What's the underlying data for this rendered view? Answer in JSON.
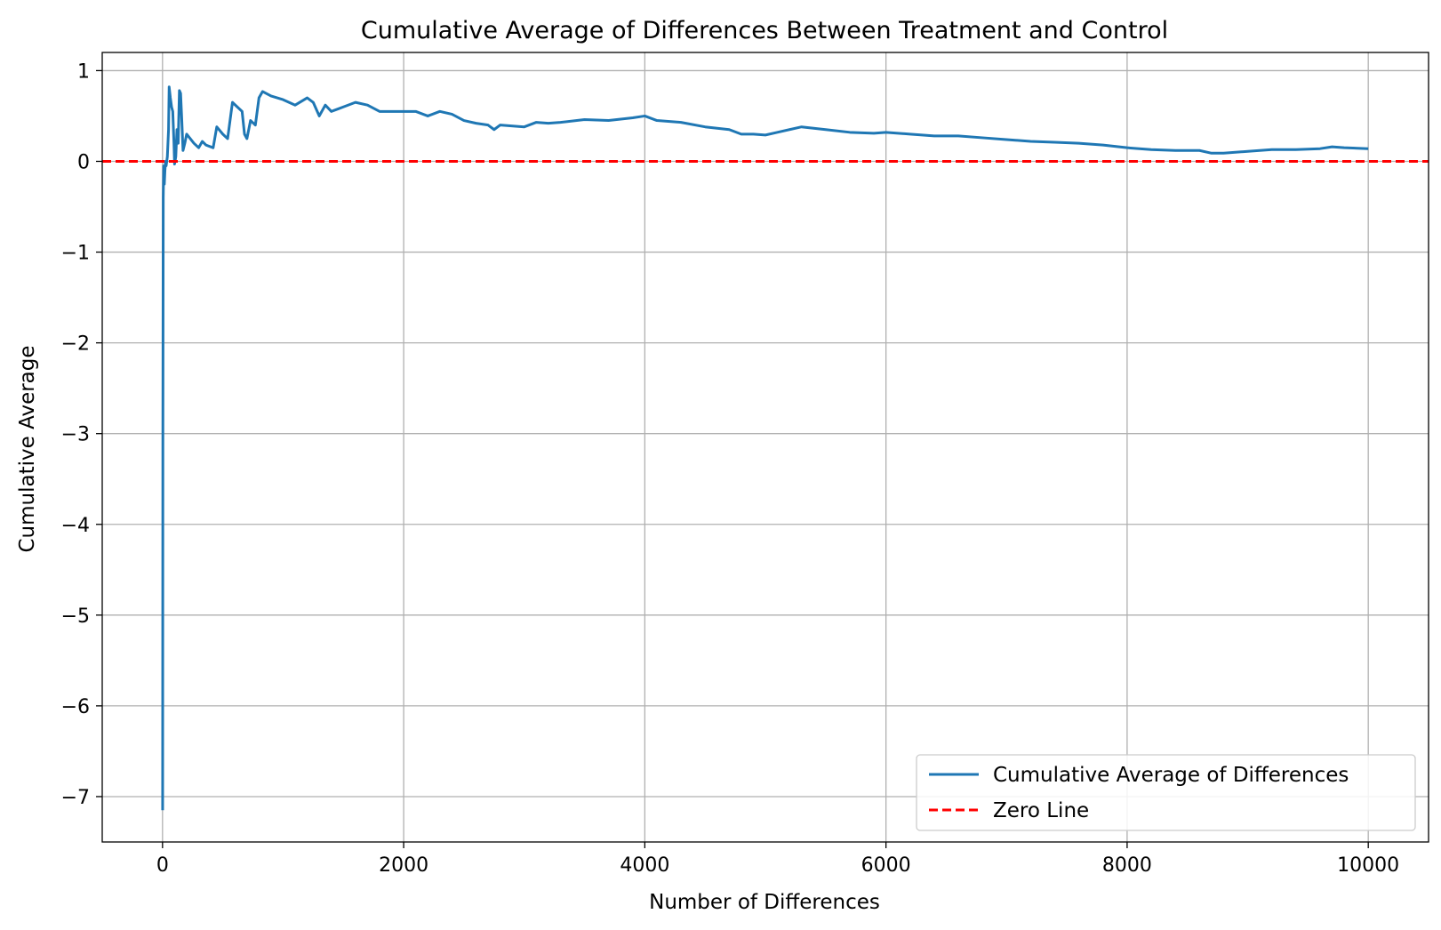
{
  "chart_data": {
    "type": "line",
    "title": "Cumulative Average of Differences Between Treatment and Control",
    "xlabel": "Number of Differences",
    "ylabel": "Cumulative Average",
    "xlim": [
      -500,
      10500
    ],
    "ylim": [
      -7.5,
      1.2
    ],
    "xticks": [
      0,
      2000,
      4000,
      6000,
      8000,
      10000
    ],
    "xtick_labels": [
      "0",
      "2000",
      "4000",
      "6000",
      "8000",
      "10000"
    ],
    "yticks": [
      1,
      0,
      -1,
      -2,
      -3,
      -4,
      -5,
      -6,
      -7
    ],
    "ytick_labels": [
      "1",
      "0",
      "−1",
      "−2",
      "−3",
      "−4",
      "−5",
      "−6",
      "−7"
    ],
    "grid": true,
    "legend_position": "bottom-right",
    "series": [
      {
        "name": "Cumulative Average of Differences",
        "color": "#1f77b4",
        "style": "solid",
        "points": [
          [
            1,
            -7.15
          ],
          [
            3,
            -3.0
          ],
          [
            6,
            -0.4
          ],
          [
            10,
            -0.05
          ],
          [
            15,
            -0.25
          ],
          [
            20,
            -0.1
          ],
          [
            25,
            0.0
          ],
          [
            30,
            -0.05
          ],
          [
            40,
            0.05
          ],
          [
            50,
            0.35
          ],
          [
            55,
            0.82
          ],
          [
            65,
            0.7
          ],
          [
            75,
            0.6
          ],
          [
            85,
            0.55
          ],
          [
            95,
            0.2
          ],
          [
            100,
            -0.03
          ],
          [
            110,
            0.05
          ],
          [
            120,
            0.35
          ],
          [
            130,
            0.2
          ],
          [
            140,
            0.78
          ],
          [
            150,
            0.75
          ],
          [
            160,
            0.45
          ],
          [
            170,
            0.12
          ],
          [
            185,
            0.2
          ],
          [
            200,
            0.3
          ],
          [
            230,
            0.25
          ],
          [
            260,
            0.2
          ],
          [
            300,
            0.15
          ],
          [
            330,
            0.22
          ],
          [
            360,
            0.18
          ],
          [
            420,
            0.15
          ],
          [
            450,
            0.38
          ],
          [
            500,
            0.3
          ],
          [
            540,
            0.25
          ],
          [
            580,
            0.65
          ],
          [
            620,
            0.6
          ],
          [
            660,
            0.55
          ],
          [
            680,
            0.3
          ],
          [
            700,
            0.25
          ],
          [
            730,
            0.45
          ],
          [
            770,
            0.4
          ],
          [
            800,
            0.7
          ],
          [
            830,
            0.77
          ],
          [
            900,
            0.72
          ],
          [
            1000,
            0.68
          ],
          [
            1100,
            0.62
          ],
          [
            1200,
            0.7
          ],
          [
            1250,
            0.65
          ],
          [
            1300,
            0.5
          ],
          [
            1350,
            0.62
          ],
          [
            1400,
            0.55
          ],
          [
            1500,
            0.6
          ],
          [
            1600,
            0.65
          ],
          [
            1700,
            0.62
          ],
          [
            1800,
            0.55
          ],
          [
            1900,
            0.55
          ],
          [
            2000,
            0.55
          ],
          [
            2100,
            0.55
          ],
          [
            2200,
            0.5
          ],
          [
            2300,
            0.55
          ],
          [
            2400,
            0.52
          ],
          [
            2500,
            0.45
          ],
          [
            2600,
            0.42
          ],
          [
            2700,
            0.4
          ],
          [
            2750,
            0.35
          ],
          [
            2800,
            0.4
          ],
          [
            3000,
            0.38
          ],
          [
            3100,
            0.43
          ],
          [
            3200,
            0.42
          ],
          [
            3300,
            0.43
          ],
          [
            3500,
            0.46
          ],
          [
            3700,
            0.45
          ],
          [
            3900,
            0.48
          ],
          [
            4000,
            0.5
          ],
          [
            4100,
            0.45
          ],
          [
            4300,
            0.43
          ],
          [
            4500,
            0.38
          ],
          [
            4700,
            0.35
          ],
          [
            4800,
            0.3
          ],
          [
            4900,
            0.3
          ],
          [
            5000,
            0.29
          ],
          [
            5100,
            0.32
          ],
          [
            5300,
            0.38
          ],
          [
            5500,
            0.35
          ],
          [
            5700,
            0.32
          ],
          [
            5900,
            0.31
          ],
          [
            6000,
            0.32
          ],
          [
            6200,
            0.3
          ],
          [
            6400,
            0.28
          ],
          [
            6600,
            0.28
          ],
          [
            6800,
            0.26
          ],
          [
            7000,
            0.24
          ],
          [
            7200,
            0.22
          ],
          [
            7400,
            0.21
          ],
          [
            7600,
            0.2
          ],
          [
            7800,
            0.18
          ],
          [
            8000,
            0.15
          ],
          [
            8200,
            0.13
          ],
          [
            8400,
            0.12
          ],
          [
            8600,
            0.12
          ],
          [
            8700,
            0.09
          ],
          [
            8800,
            0.09
          ],
          [
            9000,
            0.11
          ],
          [
            9200,
            0.13
          ],
          [
            9400,
            0.13
          ],
          [
            9600,
            0.14
          ],
          [
            9700,
            0.16
          ],
          [
            9800,
            0.15
          ],
          [
            10000,
            0.14
          ]
        ]
      },
      {
        "name": "Zero Line",
        "color": "#ff0000",
        "style": "dashed",
        "points": [
          [
            -500,
            0
          ],
          [
            10500,
            0
          ]
        ]
      }
    ]
  }
}
